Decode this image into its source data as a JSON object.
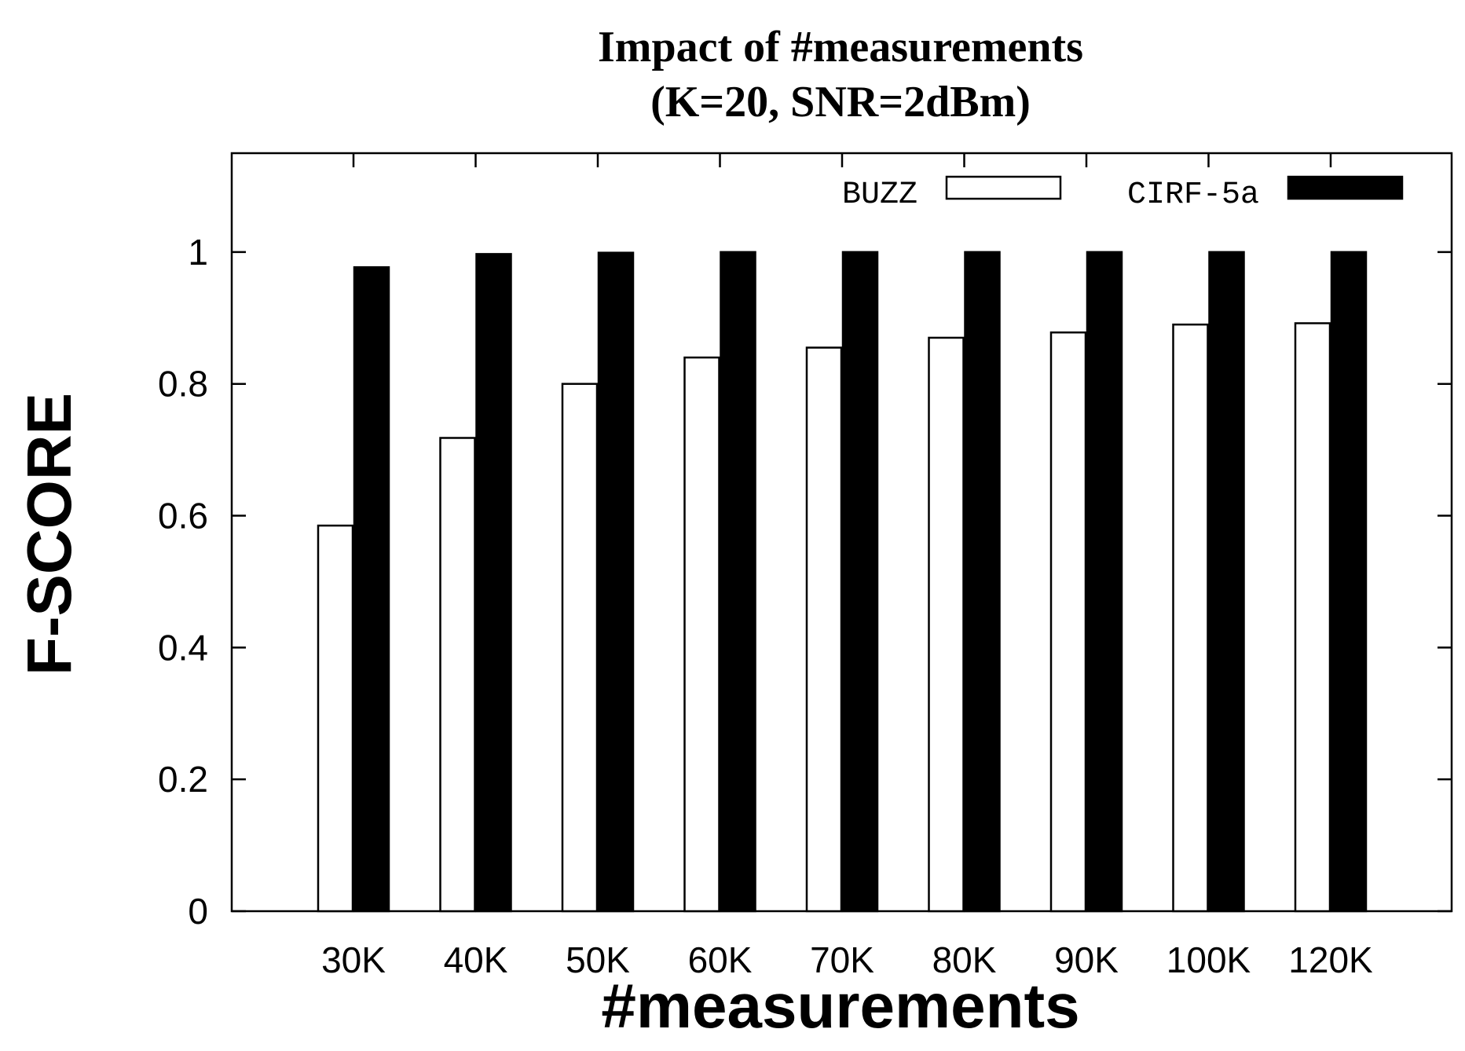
{
  "chart_data": {
    "type": "bar",
    "title": "Impact of #measurements",
    "subtitle": "(K=20, SNR=2dBm)",
    "xlabel": "#measurements",
    "ylabel": "F-SCORE",
    "ylim": [
      0,
      1.15
    ],
    "yticks": [
      "0",
      "0.2",
      "0.4",
      "0.6",
      "0.8",
      "1"
    ],
    "grid": false,
    "legend_position": "top-right",
    "categories": [
      "30K",
      "40K",
      "50K",
      "60K",
      "70K",
      "80K",
      "90K",
      "100K",
      "120K"
    ],
    "series": [
      {
        "name": "BUZZ",
        "color": "#ffffff",
        "values": [
          0.585,
          0.718,
          0.8,
          0.84,
          0.855,
          0.87,
          0.878,
          0.89,
          0.892
        ]
      },
      {
        "name": "CIRF-5a",
        "color": "#000000",
        "values": [
          0.977,
          0.997,
          0.999,
          1.0,
          1.0,
          1.0,
          1.0,
          1.0,
          1.0
        ]
      }
    ]
  }
}
